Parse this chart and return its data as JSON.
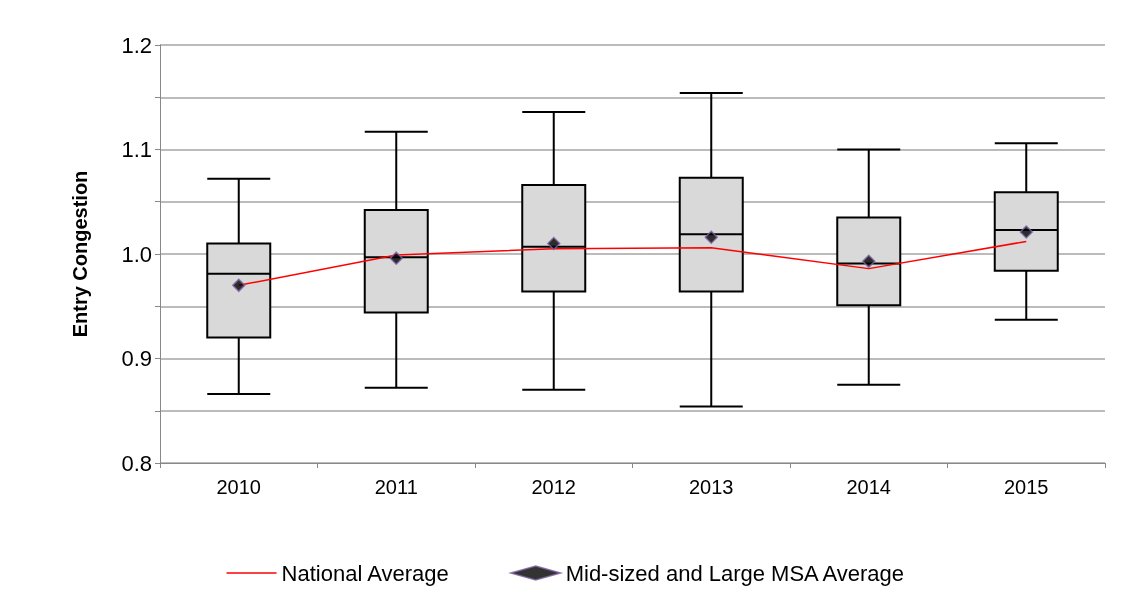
{
  "chart_data": {
    "type": "box",
    "ylabel": "Entry Congestion",
    "categories": [
      "2010",
      "2011",
      "2012",
      "2013",
      "2014",
      "2015"
    ],
    "ylim": [
      0.8,
      1.2
    ],
    "yticks": [
      0.8,
      {
        "value": 0.85,
        "label": null
      },
      0.9,
      {
        "value": 0.95,
        "label": null
      },
      {
        "value": 1,
        "label": "1.0"
      },
      {
        "value": 1.05,
        "label": null
      },
      1.1,
      {
        "value": 1.15,
        "label": null
      },
      1.2
    ],
    "grid": "y",
    "legend": "bottom",
    "series": [
      {
        "color": "#d9d9d9",
        "boxes": [
          {
            "low": 0.866,
            "q1": 0.92,
            "median": 0.981,
            "q3": 1.01,
            "high": 1.072
          },
          {
            "low": 0.872,
            "q1": 0.944,
            "median": 0.997,
            "q3": 1.042,
            "high": 1.117
          },
          {
            "low": 0.87,
            "q1": 0.964,
            "median": 1.007,
            "q3": 1.066,
            "high": 1.136
          },
          {
            "low": 0.854,
            "q1": 0.964,
            "median": 1.019,
            "q3": 1.073,
            "high": 1.154
          },
          {
            "low": 0.875,
            "q1": 0.951,
            "median": 0.991,
            "q3": 1.035,
            "high": 1.1
          },
          {
            "low": 0.937,
            "q1": 0.984,
            "median": 1.023,
            "q3": 1.059,
            "high": 1.106
          }
        ]
      },
      {
        "type": "line",
        "name": "National Average",
        "color": "#ff0000",
        "marker": "none",
        "values": [
          0.97,
          0.999,
          1.005,
          1.006,
          0.986,
          1.012
        ]
      },
      {
        "type": "scatter",
        "name": "Mid-sized and Large MSA Average",
        "color": "#000000",
        "marker": "diamond",
        "values": [
          0.97,
          0.996,
          1.01,
          1.016,
          0.993,
          1.021
        ]
      }
    ]
  }
}
